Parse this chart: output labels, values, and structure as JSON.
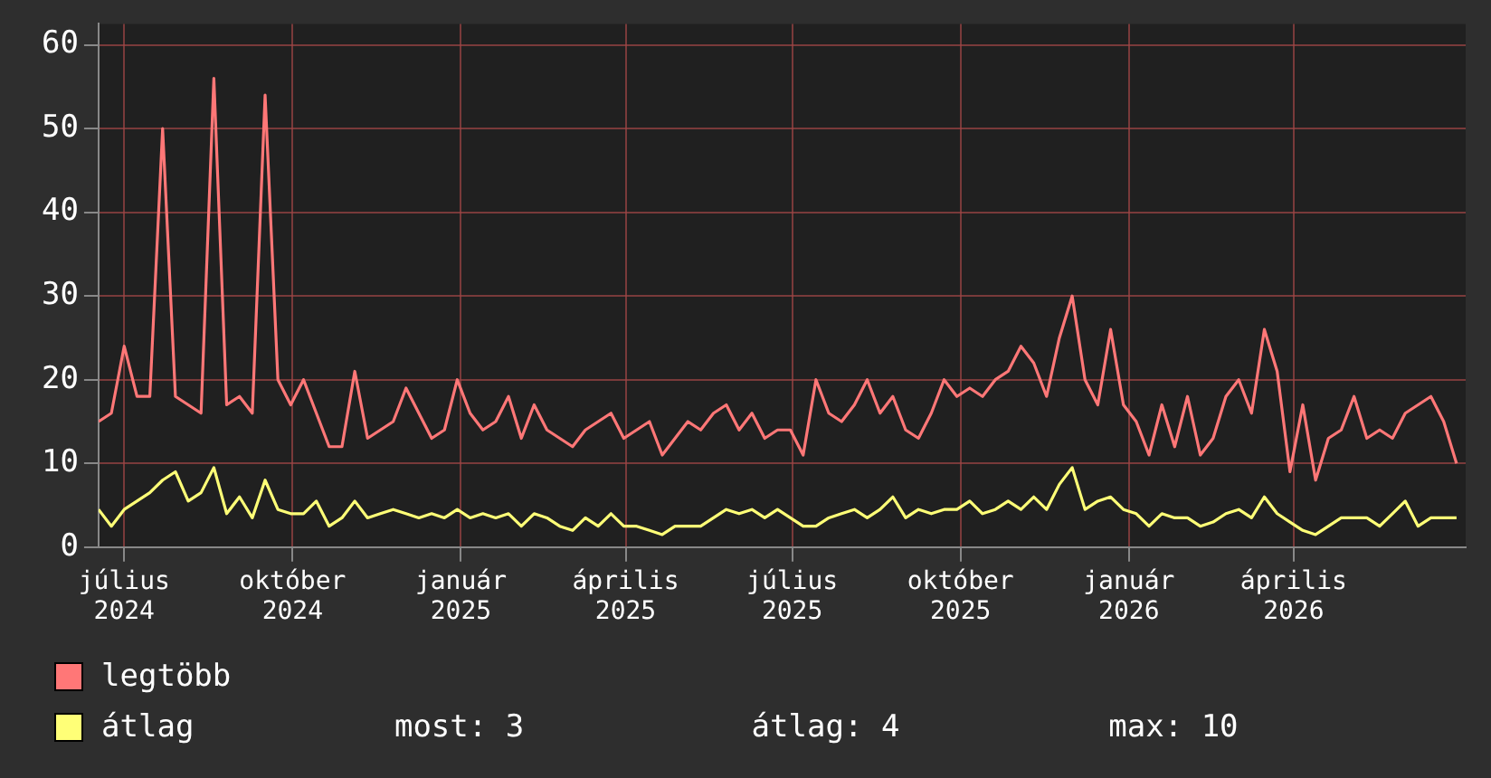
{
  "chart_data": {
    "type": "line",
    "x": [
      "2024-06-17",
      "2024-06-24",
      "2024-07-01",
      "2024-07-08",
      "2024-07-15",
      "2024-07-22",
      "2024-07-29",
      "2024-08-05",
      "2024-08-12",
      "2024-08-19",
      "2024-08-26",
      "2024-09-02",
      "2024-09-09",
      "2024-09-16",
      "2024-09-23",
      "2024-09-30",
      "2024-10-07",
      "2024-10-14",
      "2024-10-21",
      "2024-10-28",
      "2024-11-04",
      "2024-11-11",
      "2024-11-18",
      "2024-11-25",
      "2024-12-02",
      "2024-12-09",
      "2024-12-16",
      "2024-12-23",
      "2024-12-30",
      "2025-01-06",
      "2025-01-13",
      "2025-01-20",
      "2025-01-27",
      "2025-02-03",
      "2025-02-10",
      "2025-02-17",
      "2025-02-24",
      "2025-03-03",
      "2025-03-10",
      "2025-03-17",
      "2025-03-24",
      "2025-03-31",
      "2025-04-07",
      "2025-04-14",
      "2025-04-21",
      "2025-04-28",
      "2025-05-05",
      "2025-05-12",
      "2025-05-19",
      "2025-05-26",
      "2025-06-02",
      "2025-06-09",
      "2025-06-16",
      "2025-06-23",
      "2025-06-30",
      "2025-07-07",
      "2025-07-14",
      "2025-07-21",
      "2025-07-28",
      "2025-08-04",
      "2025-08-11",
      "2025-08-18",
      "2025-08-25",
      "2025-09-01",
      "2025-09-08",
      "2025-09-15",
      "2025-09-22",
      "2025-09-29",
      "2025-10-06",
      "2025-10-13",
      "2025-10-20",
      "2025-10-27",
      "2025-11-03",
      "2025-11-10",
      "2025-11-17",
      "2025-11-24",
      "2025-12-01",
      "2025-12-08",
      "2025-12-15",
      "2025-12-22",
      "2025-12-29",
      "2026-01-05",
      "2026-01-12",
      "2026-01-19",
      "2026-01-26",
      "2026-02-02",
      "2026-02-09",
      "2026-02-16",
      "2026-02-23",
      "2026-03-02",
      "2026-03-09",
      "2026-03-16",
      "2026-03-23",
      "2026-03-30",
      "2026-04-06",
      "2026-04-13",
      "2026-04-20",
      "2026-04-27",
      "2026-05-04",
      "2026-05-11",
      "2026-05-18",
      "2026-05-25",
      "2026-06-01",
      "2026-06-08",
      "2026-06-15",
      "2026-06-22",
      "2026-06-29"
    ],
    "series": [
      {
        "name": "legtöbb",
        "color": "#ff7777",
        "values": [
          15,
          16,
          24,
          18,
          18,
          50,
          18,
          17,
          16,
          56,
          17,
          18,
          16,
          54,
          20,
          17,
          20,
          16,
          12,
          12,
          21,
          13,
          14,
          15,
          19,
          16,
          13,
          14,
          20,
          16,
          14,
          15,
          18,
          13,
          17,
          14,
          13,
          12,
          14,
          15,
          16,
          13,
          14,
          15,
          11,
          13,
          15,
          14,
          16,
          17,
          14,
          16,
          13,
          14,
          14,
          11,
          20,
          16,
          15,
          17,
          20,
          16,
          18,
          14,
          13,
          16,
          20,
          18,
          19,
          18,
          20,
          21,
          24,
          22,
          18,
          25,
          30,
          20,
          17,
          26,
          17,
          15,
          11,
          17,
          12,
          18,
          11,
          13,
          18,
          20,
          16,
          26,
          21,
          9,
          17,
          8,
          13,
          14,
          18,
          13,
          14,
          13,
          16,
          17,
          18,
          15,
          10
        ]
      },
      {
        "name": "átlag",
        "color": "#ffff77",
        "values": [
          4.5,
          2.5,
          4.5,
          5.5,
          6.5,
          8,
          9,
          5.5,
          6.5,
          9.5,
          4,
          6,
          3.5,
          8,
          4.5,
          4,
          4,
          5.5,
          2.5,
          3.5,
          5.5,
          3.5,
          4,
          4.5,
          4,
          3.5,
          4,
          3.5,
          4.5,
          3.5,
          4,
          3.5,
          4,
          2.5,
          4,
          3.5,
          2.5,
          2,
          3.5,
          2.5,
          4,
          2.5,
          2.5,
          2,
          1.5,
          2.5,
          2.5,
          2.5,
          3.5,
          4.5,
          4,
          4.5,
          3.5,
          4.5,
          3.5,
          2.5,
          2.5,
          3.5,
          4,
          4.5,
          3.5,
          4.5,
          6,
          3.5,
          4.5,
          4,
          4.5,
          4.5,
          5.5,
          4,
          4.5,
          5.5,
          4.5,
          6,
          4.5,
          7.5,
          9.5,
          4.5,
          5.5,
          6,
          4.5,
          4,
          2.5,
          4,
          3.5,
          3.5,
          2.5,
          3,
          4,
          4.5,
          3.5,
          6,
          4,
          3,
          2,
          1.5,
          2.5,
          3.5,
          3.5,
          3.5,
          2.5,
          4,
          5.5,
          2.5,
          3.5,
          3.5,
          3.5
        ]
      }
    ],
    "xlim": [
      "2024-06-17",
      "2026-07-04"
    ],
    "xticks": [
      {
        "value": "2024-07-01",
        "label": "július 2024"
      },
      {
        "value": "2024-10-01",
        "label": "október 2024"
      },
      {
        "value": "2025-01-01",
        "label": "január 2025"
      },
      {
        "value": "2025-04-01",
        "label": "április 2025"
      },
      {
        "value": "2025-07-01",
        "label": "július 2025"
      },
      {
        "value": "2025-10-01",
        "label": "október 2025"
      },
      {
        "value": "2026-01-01",
        "label": "január 2026"
      },
      {
        "value": "2026-04-01",
        "label": "április 2026"
      }
    ],
    "ylim": [
      0,
      62.5
    ],
    "yticks": [
      0,
      10,
      20,
      30,
      40,
      50,
      60
    ],
    "grid": true,
    "legend": "bottom left",
    "marker": "none",
    "line_style": "solid",
    "annotations": [
      "most: 3",
      "átlag: 4",
      "max: 10"
    ]
  }
}
